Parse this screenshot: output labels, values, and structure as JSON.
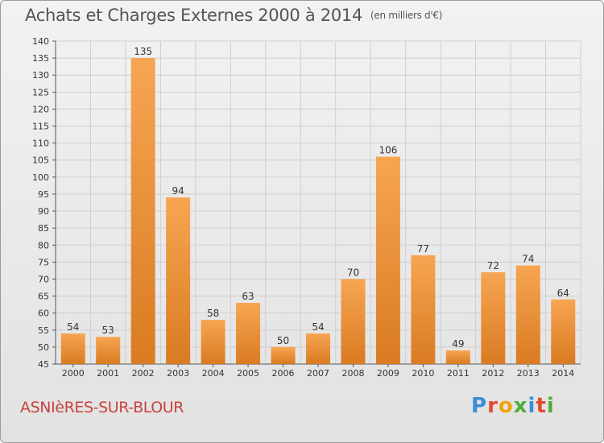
{
  "header": {
    "title": "Achats et Charges Externes 2000 à 2014",
    "subtitle": "(en milliers d'€)"
  },
  "footer": {
    "commune": "ASNIèRES-SUR-BLOUR",
    "brand": "Proxiti",
    "brand_colors": [
      "#3a8fd6",
      "#e2492f",
      "#f0a30a",
      "#4caf3a",
      "#3a8fd6",
      "#e2492f",
      "#4caf3a"
    ]
  },
  "chart_data": {
    "type": "bar",
    "categories": [
      "2000",
      "2001",
      "2002",
      "2003",
      "2004",
      "2005",
      "2006",
      "2007",
      "2008",
      "2009",
      "2010",
      "2011",
      "2012",
      "2013",
      "2014"
    ],
    "values": [
      54,
      53,
      135,
      94,
      58,
      63,
      50,
      54,
      70,
      106,
      77,
      49,
      72,
      74,
      64
    ],
    "title": "Achats et Charges Externes 2000 à 2014",
    "ylim": [
      45,
      140
    ],
    "ytick_step": 5,
    "grid": true,
    "bar_color_light": "#f7a552",
    "bar_color_dark": "#d97b22"
  }
}
